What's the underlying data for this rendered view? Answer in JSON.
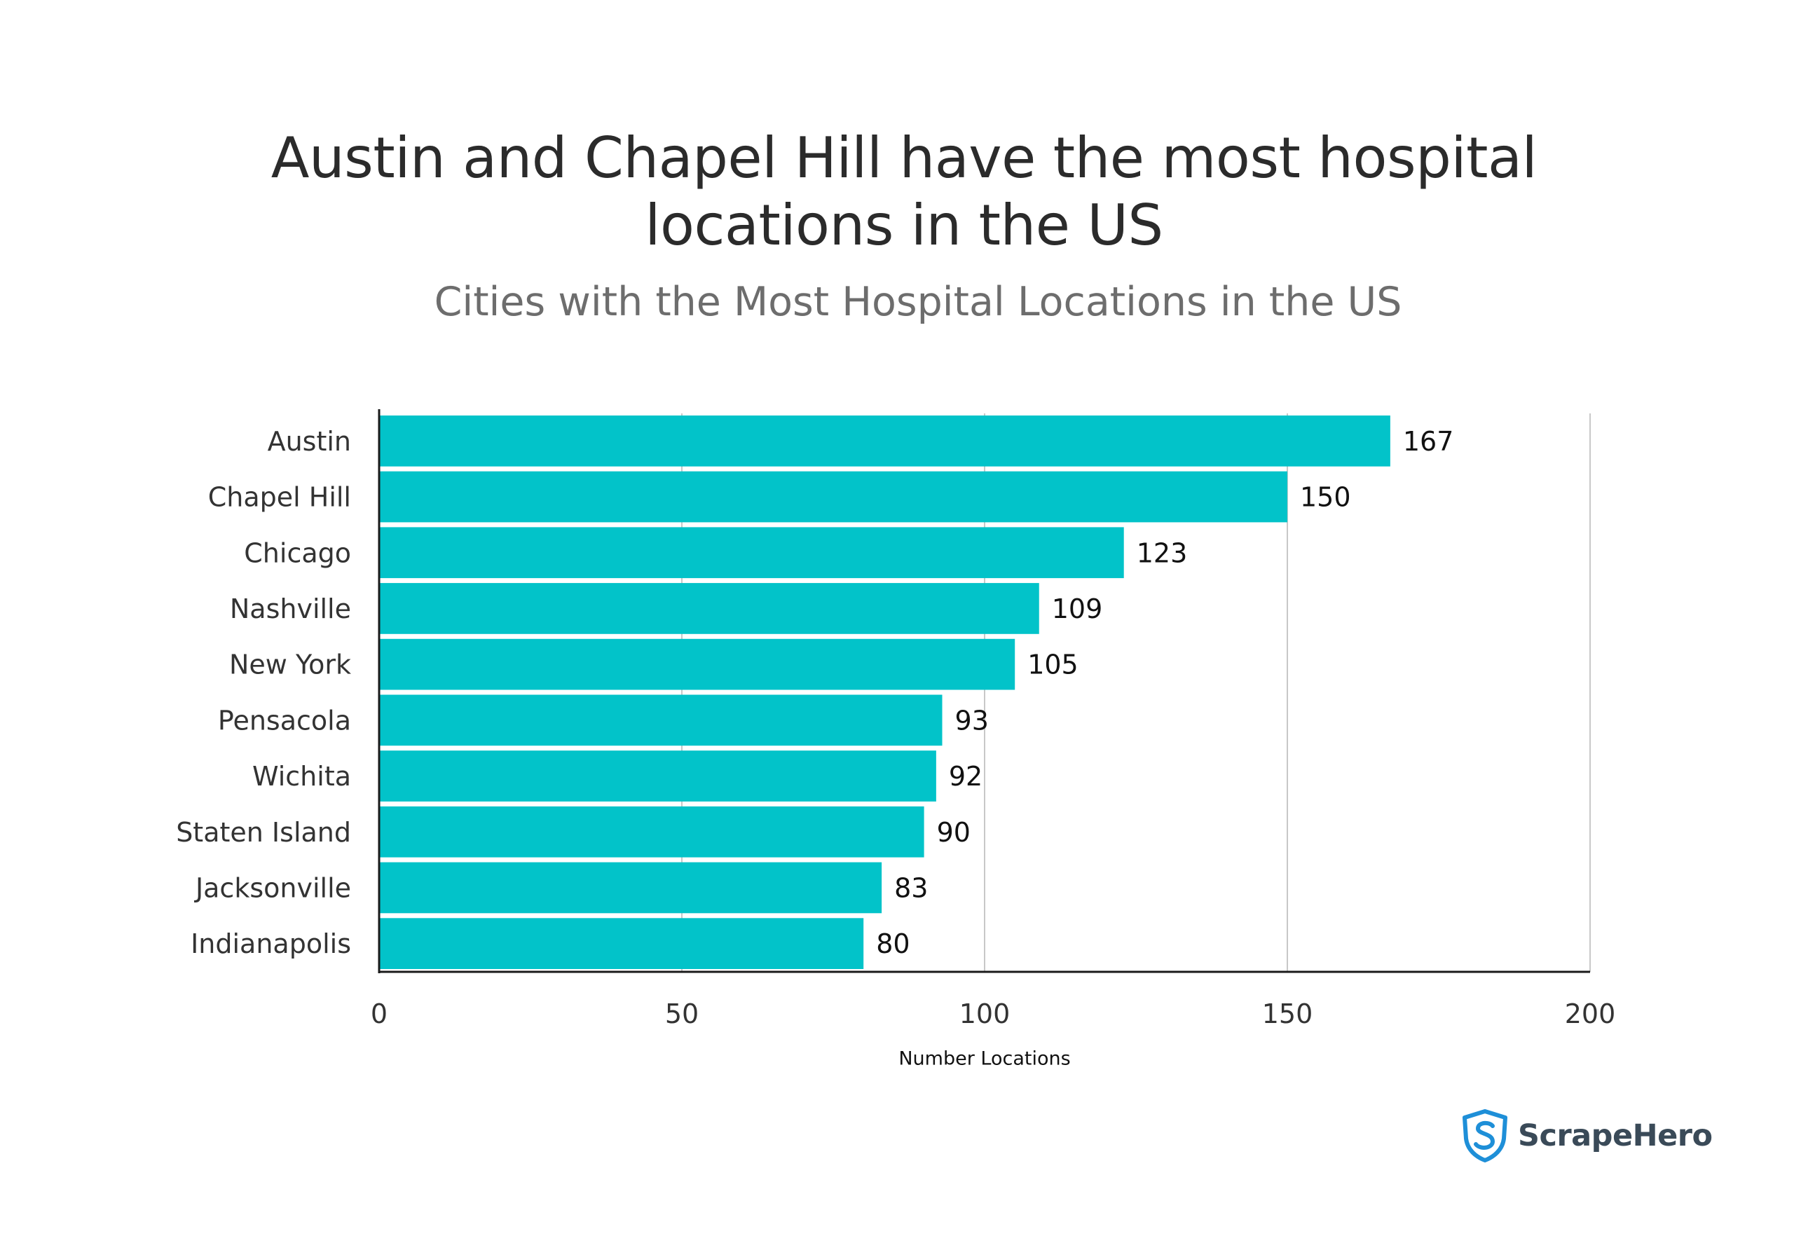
{
  "title_line1": "Austin and Chapel Hill have the most hospital",
  "title_line2": "locations in the US",
  "subtitle": "Cities with the Most Hospital Locations in the US",
  "brand": {
    "name": "ScrapeHero",
    "logo_icon": "shield-s-icon",
    "logo_color": "#1e8fd8"
  },
  "colors": {
    "bar": "#02c3c9",
    "grid": "#c8c8c8",
    "axis": "#1a1a1a",
    "label": "#333333",
    "value_label": "#111111"
  },
  "chart_data": {
    "type": "bar",
    "orientation": "horizontal",
    "categories": [
      "Austin",
      "Chapel Hill",
      "Chicago",
      "Nashville",
      "New York",
      "Pensacola",
      "Wichita",
      "Staten Island",
      "Jacksonville",
      "Indianapolis"
    ],
    "values": [
      167,
      150,
      123,
      109,
      105,
      93,
      92,
      90,
      83,
      80
    ],
    "title": "Austin and Chapel Hill have the most hospital locations in the US",
    "subtitle": "Cities with the Most Hospital Locations in the US",
    "xlabel": "Number Locations",
    "ylabel": "",
    "xlim": [
      0,
      200
    ],
    "xticks": [
      0,
      50,
      100,
      150,
      200
    ],
    "grid": true,
    "data_labels": true
  }
}
